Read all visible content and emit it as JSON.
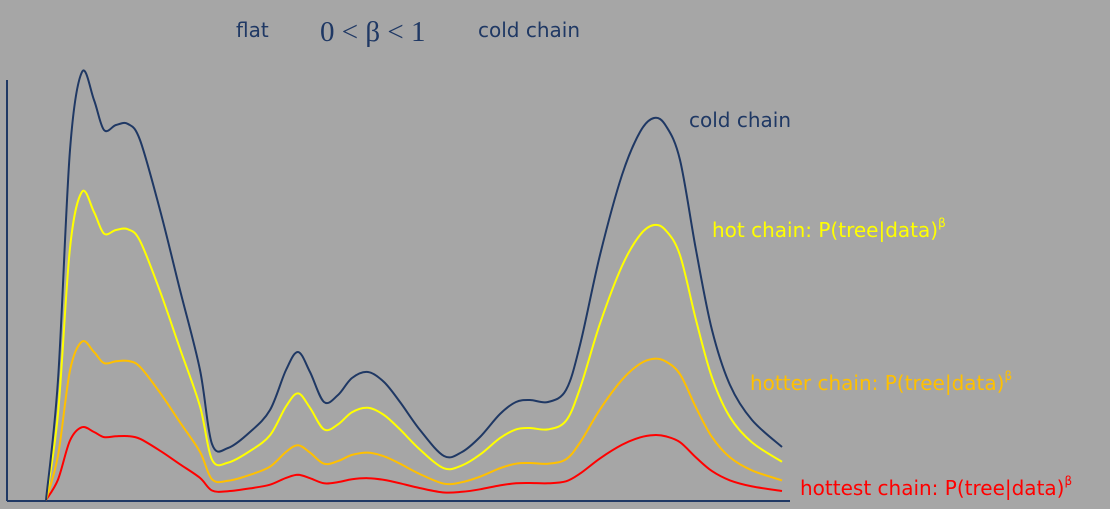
{
  "header": {
    "flat_label": "flat",
    "beta_range": "0 < β < 1",
    "cold_chain_label": "cold chain"
  },
  "curves": [
    {
      "id": "cold",
      "label": "cold chain",
      "superscript": "",
      "color": "#1f3864",
      "scale": 1.0,
      "floor": 0.12
    },
    {
      "id": "hot",
      "label": "hot chain: P(tree|data)",
      "superscript": "β",
      "color": "#ffff00",
      "scale": 0.72,
      "floor": 0.08
    },
    {
      "id": "hotter",
      "label": "hotter chain: P(tree|data)",
      "superscript": "β",
      "color": "#ffc000",
      "scale": 0.37,
      "floor": 0.04
    },
    {
      "id": "hottest",
      "label": "hottest chain: P(tree|data)",
      "superscript": "β",
      "color": "#ff0000",
      "scale": 0.17,
      "floor": 0.02
    }
  ]
}
